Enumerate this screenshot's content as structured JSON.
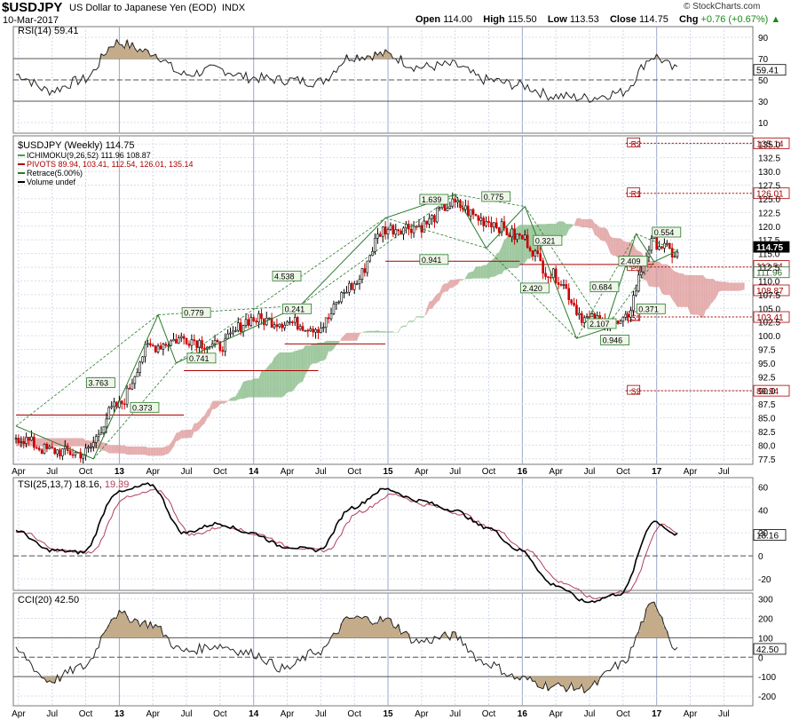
{
  "header": {
    "symbol": "$USDJPY",
    "description": "US Dollar to Japanese Yen (EOD)",
    "exchange": "INDX",
    "date": "10-Mar-2017",
    "brand": "© StockCharts.com",
    "open_label": "Open",
    "open": "114.00",
    "high_label": "High",
    "high": "115.50",
    "low_label": "Low",
    "low": "113.53",
    "close_label": "Close",
    "close": "114.75",
    "chg_label": "Chg",
    "chg": "+0.76 (+0.67%)"
  },
  "colors": {
    "up": "#000000",
    "down": "#cc0000",
    "cloud_bull": "#4e9a4e",
    "cloud_bear": "#c94040",
    "pivot": "#aa0000",
    "tsi_signal": "#b0405a",
    "osc_fill": "#b8a080"
  },
  "time_axis": [
    "Apr",
    "Jul",
    "Oct",
    "13",
    "Apr",
    "Jul",
    "Oct",
    "14",
    "Apr",
    "Jul",
    "Oct",
    "15",
    "Apr",
    "Jul",
    "Oct",
    "16",
    "Apr",
    "Jul",
    "Oct",
    "17",
    "Apr",
    "Jul"
  ],
  "rsi": {
    "title": "RSI(14) 59.41",
    "ticks": [
      "90",
      "70",
      "50",
      "30",
      "10"
    ],
    "last": "59.41",
    "overbought": 70,
    "oversold": 30,
    "ylim": [
      0,
      100
    ]
  },
  "price": {
    "title": "$USDJPY (Weekly) 114.75",
    "ticks": [
      "135.0",
      "132.5",
      "130.0",
      "127.5",
      "125.0",
      "122.5",
      "120.0",
      "117.5",
      "115.0",
      "112.5",
      "110.0",
      "107.5",
      "105.0",
      "102.5",
      "100.0",
      "97.5",
      "95.0",
      "92.5",
      "90.0",
      "87.5",
      "85.0",
      "82.5",
      "80.0",
      "77.5"
    ],
    "legend": [
      {
        "name": "ICHIMOKU(9,26,52) 111.96 108.87",
        "color": "#4e9a4e"
      },
      {
        "name": "PIVOTS 89.94, 103.41, 112.54, 126.01, 135.14",
        "color": "#aa0000"
      },
      {
        "name": "Retrace(5.00%)",
        "color": "#2a7a2a"
      },
      {
        "name": "Volume undef",
        "color": "#000000"
      }
    ],
    "value_labels": [
      {
        "text": "135.14",
        "style": "red"
      },
      {
        "text": "126.01",
        "style": "red"
      },
      {
        "text": "114.75",
        "style": "black"
      },
      {
        "text": "112.54",
        "style": "red"
      },
      {
        "text": "111.96",
        "style": "green"
      },
      {
        "text": "108.87",
        "style": "red"
      },
      {
        "text": "103.41",
        "style": "red"
      },
      {
        "text": "89.94",
        "style": "red"
      }
    ],
    "pivot_labels": [
      "R2",
      "R1",
      "P",
      "S1",
      "S2"
    ],
    "retrace_labels": [
      "3.763",
      "0.373",
      "0.779",
      "0.741",
      "4.538",
      "0.241",
      "1.639",
      "0.941",
      "0.775",
      "0.321",
      "2.420",
      "0.684",
      "2.107",
      "0.946",
      "2.409",
      "0.371",
      "0.554"
    ]
  },
  "tsi": {
    "title_main": "TSI(25,13,7) 18.16,",
    "title_signal": "19.39",
    "ticks": [
      "60",
      "40",
      "20",
      "0",
      "-20"
    ],
    "last": "18.16"
  },
  "cci": {
    "title": "CCI(20) 42.50",
    "ticks": [
      "300",
      "200",
      "100",
      "0",
      "-100",
      "-200"
    ],
    "last": "42.50"
  },
  "chart_data": {
    "type": "line",
    "x_label_positions_note": "weekly bars from Apr 2012 to Mar 2017",
    "x": [
      "2012-04",
      "2012-07",
      "2012-10",
      "2013-01",
      "2013-04",
      "2013-07",
      "2013-10",
      "2014-01",
      "2014-04",
      "2014-07",
      "2014-10",
      "2015-01",
      "2015-04",
      "2015-07",
      "2015-10",
      "2016-01",
      "2016-04",
      "2016-07",
      "2016-10",
      "2017-01",
      "2017-03"
    ],
    "series": [
      {
        "name": "$USDJPY",
        "values": [
          81.5,
          79.0,
          78.5,
          87.0,
          98.0,
          99.5,
          98.0,
          103.0,
          102.5,
          101.5,
          109.0,
          119.5,
          120.0,
          124.0,
          121.0,
          118.0,
          111.0,
          103.0,
          102.0,
          117.0,
          114.75
        ]
      },
      {
        "name": "RSI(14)",
        "values": [
          55,
          40,
          50,
          85,
          76,
          55,
          60,
          52,
          50,
          48,
          72,
          74,
          62,
          64,
          50,
          45,
          35,
          33,
          38,
          72,
          59.41
        ]
      },
      {
        "name": "TSI(25,13,7)",
        "values": [
          22,
          5,
          3,
          55,
          62,
          20,
          28,
          20,
          8,
          5,
          42,
          58,
          48,
          40,
          25,
          5,
          -25,
          -40,
          -33,
          30,
          18.16
        ]
      },
      {
        "name": "CCI(20)",
        "values": [
          30,
          -120,
          -50,
          220,
          170,
          30,
          60,
          20,
          -60,
          30,
          200,
          190,
          80,
          110,
          -30,
          -110,
          -150,
          -160,
          -40,
          270,
          42.5
        ]
      }
    ],
    "price_range": [
      76.5,
      136.5
    ],
    "rsi_range": [
      0,
      100
    ],
    "tsi_range": [
      -30,
      68
    ],
    "cci_range": [
      -250,
      330
    ],
    "grid": true,
    "legend_position": "top-left"
  }
}
